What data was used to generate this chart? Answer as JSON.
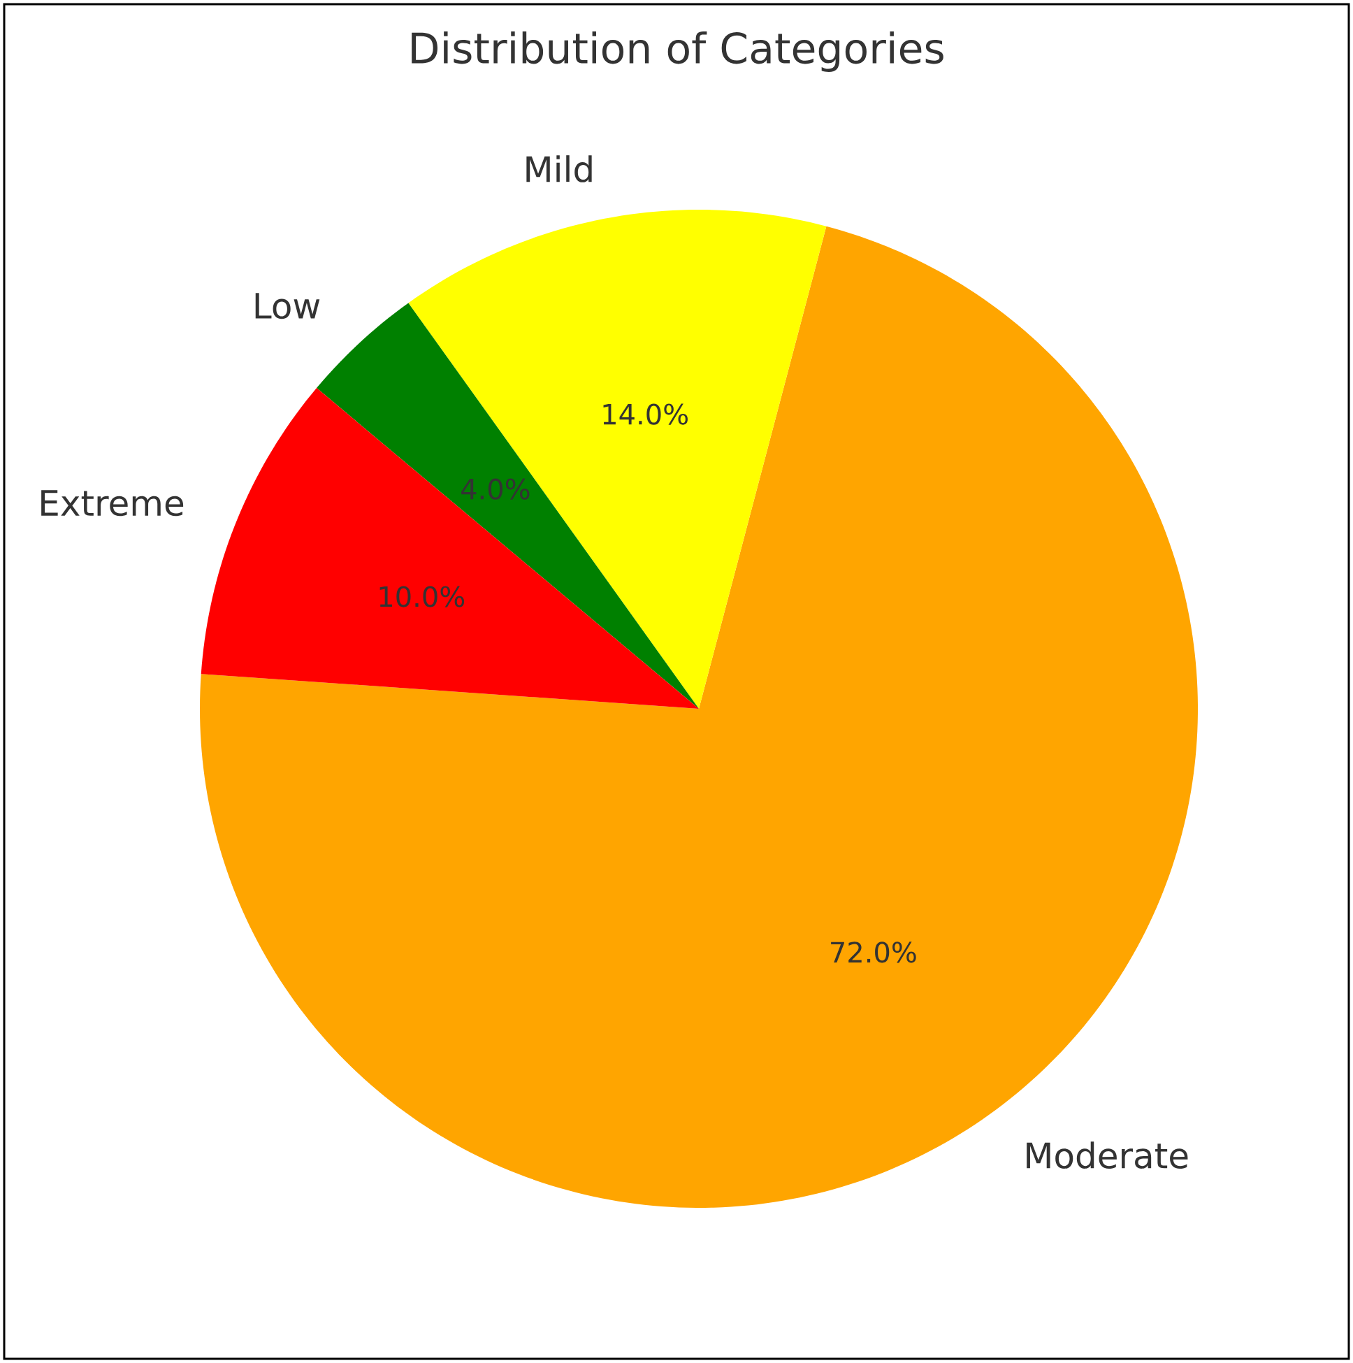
{
  "chart_data": {
    "type": "pie",
    "title": "Distribution of Categories",
    "categories": [
      "Moderate",
      "Mild",
      "Low",
      "Extreme"
    ],
    "values": [
      72,
      14,
      4,
      10
    ],
    "colors": [
      "#ffa500",
      "#ffff00",
      "#008000",
      "#ff0000"
    ],
    "value_labels": [
      "72.0%",
      "14.0%",
      "4.0%",
      "10.0%"
    ]
  }
}
